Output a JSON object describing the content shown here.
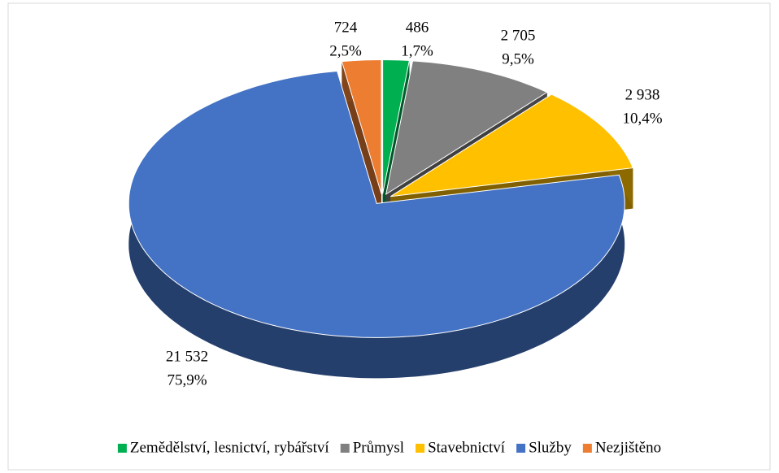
{
  "chart_data": {
    "type": "pie",
    "categories": [
      "Zemědělství, lesnictví, rybářství",
      "Průmysl",
      "Stavebnictví",
      "Služby",
      "Nezjištěno"
    ],
    "values": [
      486,
      2705,
      2938,
      21532,
      724
    ],
    "value_labels": [
      "486",
      "2 705",
      "2 938",
      "21 532",
      "724"
    ],
    "percents": [
      1.7,
      9.5,
      10.4,
      75.9,
      2.5
    ],
    "percent_labels": [
      "1,7%",
      "9,5%",
      "10,4%",
      "75,9%",
      "2,5%"
    ],
    "colors": [
      "#00b050",
      "#808080",
      "#ffc000",
      "#4472c4",
      "#ed7d31"
    ],
    "legend": "bottom"
  }
}
